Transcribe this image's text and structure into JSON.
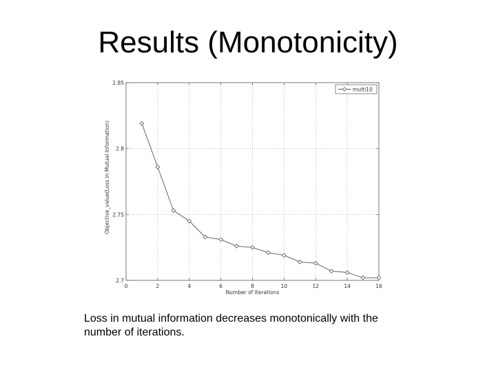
{
  "slide": {
    "title": "Results (Monotonicity)",
    "caption": "Loss in mutual information decreases monotonically with the number of iterations."
  },
  "chart_data": {
    "type": "line",
    "xlabel": "Number of Iterations",
    "ylabel": "Objective_value(Loss in Mutual Information)",
    "xlim": [
      0,
      16
    ],
    "ylim": [
      2.7,
      2.85
    ],
    "x_ticks": [
      "0",
      "2",
      "4",
      "6",
      "8",
      "10",
      "12",
      "14",
      "16"
    ],
    "y_ticks": [
      "2.7",
      "2.75",
      "2.8",
      "2.85"
    ],
    "grid": true,
    "legend_position": "top-right",
    "series": [
      {
        "name": "multi10",
        "marker": "diamond",
        "color": "#555555",
        "x": [
          1,
          2,
          3,
          4,
          5,
          6,
          7,
          8,
          9,
          10,
          11,
          12,
          13,
          14,
          15,
          16
        ],
        "y": [
          2.819,
          2.786,
          2.753,
          2.745,
          2.733,
          2.731,
          2.726,
          2.725,
          2.721,
          2.719,
          2.714,
          2.713,
          2.707,
          2.706,
          2.702,
          2.702
        ]
      }
    ]
  }
}
